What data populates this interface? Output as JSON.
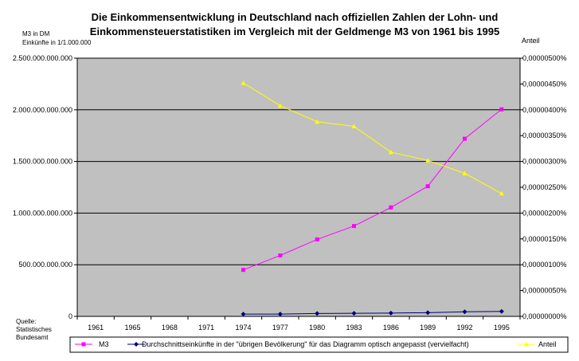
{
  "chart_data": {
    "type": "line",
    "title_lines": [
      "Die Einkommensentwicklung in Deutschland nach offiziellen Zahlen der Lohn- und",
      "Einkommensteuerstatistiken im Vergleich mit der Geldmenge M3 von 1961 bis 1995"
    ],
    "left_axis_label_lines": [
      "M3 in DM",
      "Einkünfte in 1/1.000.000"
    ],
    "right_axis_label": "Anteil",
    "source_lines": [
      "Quelle:",
      "Statistisches",
      "Bundesamt"
    ],
    "categories": [
      "1961",
      "1965",
      "1968",
      "1971",
      "1974",
      "1977",
      "1980",
      "1983",
      "1986",
      "1989",
      "1992",
      "1995"
    ],
    "ylim_left": [
      0,
      2500000000000
    ],
    "ylim_right": [
      0,
      5e-06
    ],
    "left_ticks": [
      {
        "value": 0,
        "label": "0"
      },
      {
        "value": 500000000000,
        "label": "500.000.000.000"
      },
      {
        "value": 1000000000000,
        "label": "1.000.000.000.000"
      },
      {
        "value": 1500000000000,
        "label": "1.500.000.000.000"
      },
      {
        "value": 2000000000000,
        "label": "2.000.000.000.000"
      },
      {
        "value": 2500000000000,
        "label": "2.500.000.000.000"
      }
    ],
    "right_ticks": [
      {
        "value": 0.0,
        "label": "0,00000000%"
      },
      {
        "value": 5e-07,
        "label": "0,00000050%"
      },
      {
        "value": 1e-06,
        "label": "0,00000100%"
      },
      {
        "value": 1.5e-06,
        "label": "0,00000150%"
      },
      {
        "value": 2e-06,
        "label": "0,00000200%"
      },
      {
        "value": 2.5e-06,
        "label": "0,00000250%"
      },
      {
        "value": 3e-06,
        "label": "0,00000300%"
      },
      {
        "value": 3.5e-06,
        "label": "0,00000350%"
      },
      {
        "value": 4e-06,
        "label": "0,00000400%"
      },
      {
        "value": 4.5e-06,
        "label": "0,00000450%"
      },
      {
        "value": 5e-06,
        "label": "0,00000500%"
      }
    ],
    "grid": true,
    "legend_position": "bottom",
    "series": [
      {
        "name": "M3",
        "axis": "left",
        "color": "#ff00ff",
        "marker": "square",
        "values": [
          null,
          null,
          null,
          null,
          450000000000,
          590000000000,
          745000000000,
          875000000000,
          1055000000000,
          1260000000000,
          1720000000000,
          2005000000000
        ]
      },
      {
        "name": "Durchschnittseinkünfte in der \"übrigen Bevölkerung\"  für das Diagramm  optisch angepasst (vervielfacht)",
        "axis": "left",
        "color": "#000080",
        "marker": "diamond",
        "values": [
          null,
          null,
          null,
          null,
          22000000000,
          22000000000,
          28000000000,
          30000000000,
          32000000000,
          36000000000,
          44000000000,
          48000000000
        ]
      },
      {
        "name": "Anteil",
        "axis": "right",
        "color": "#ffff00",
        "marker": "triangle",
        "values": [
          null,
          null,
          null,
          null,
          4.52e-06,
          4.08e-06,
          3.77e-06,
          3.68e-06,
          3.18e-06,
          3.02e-06,
          2.77e-06,
          2.38e-06
        ]
      }
    ]
  }
}
